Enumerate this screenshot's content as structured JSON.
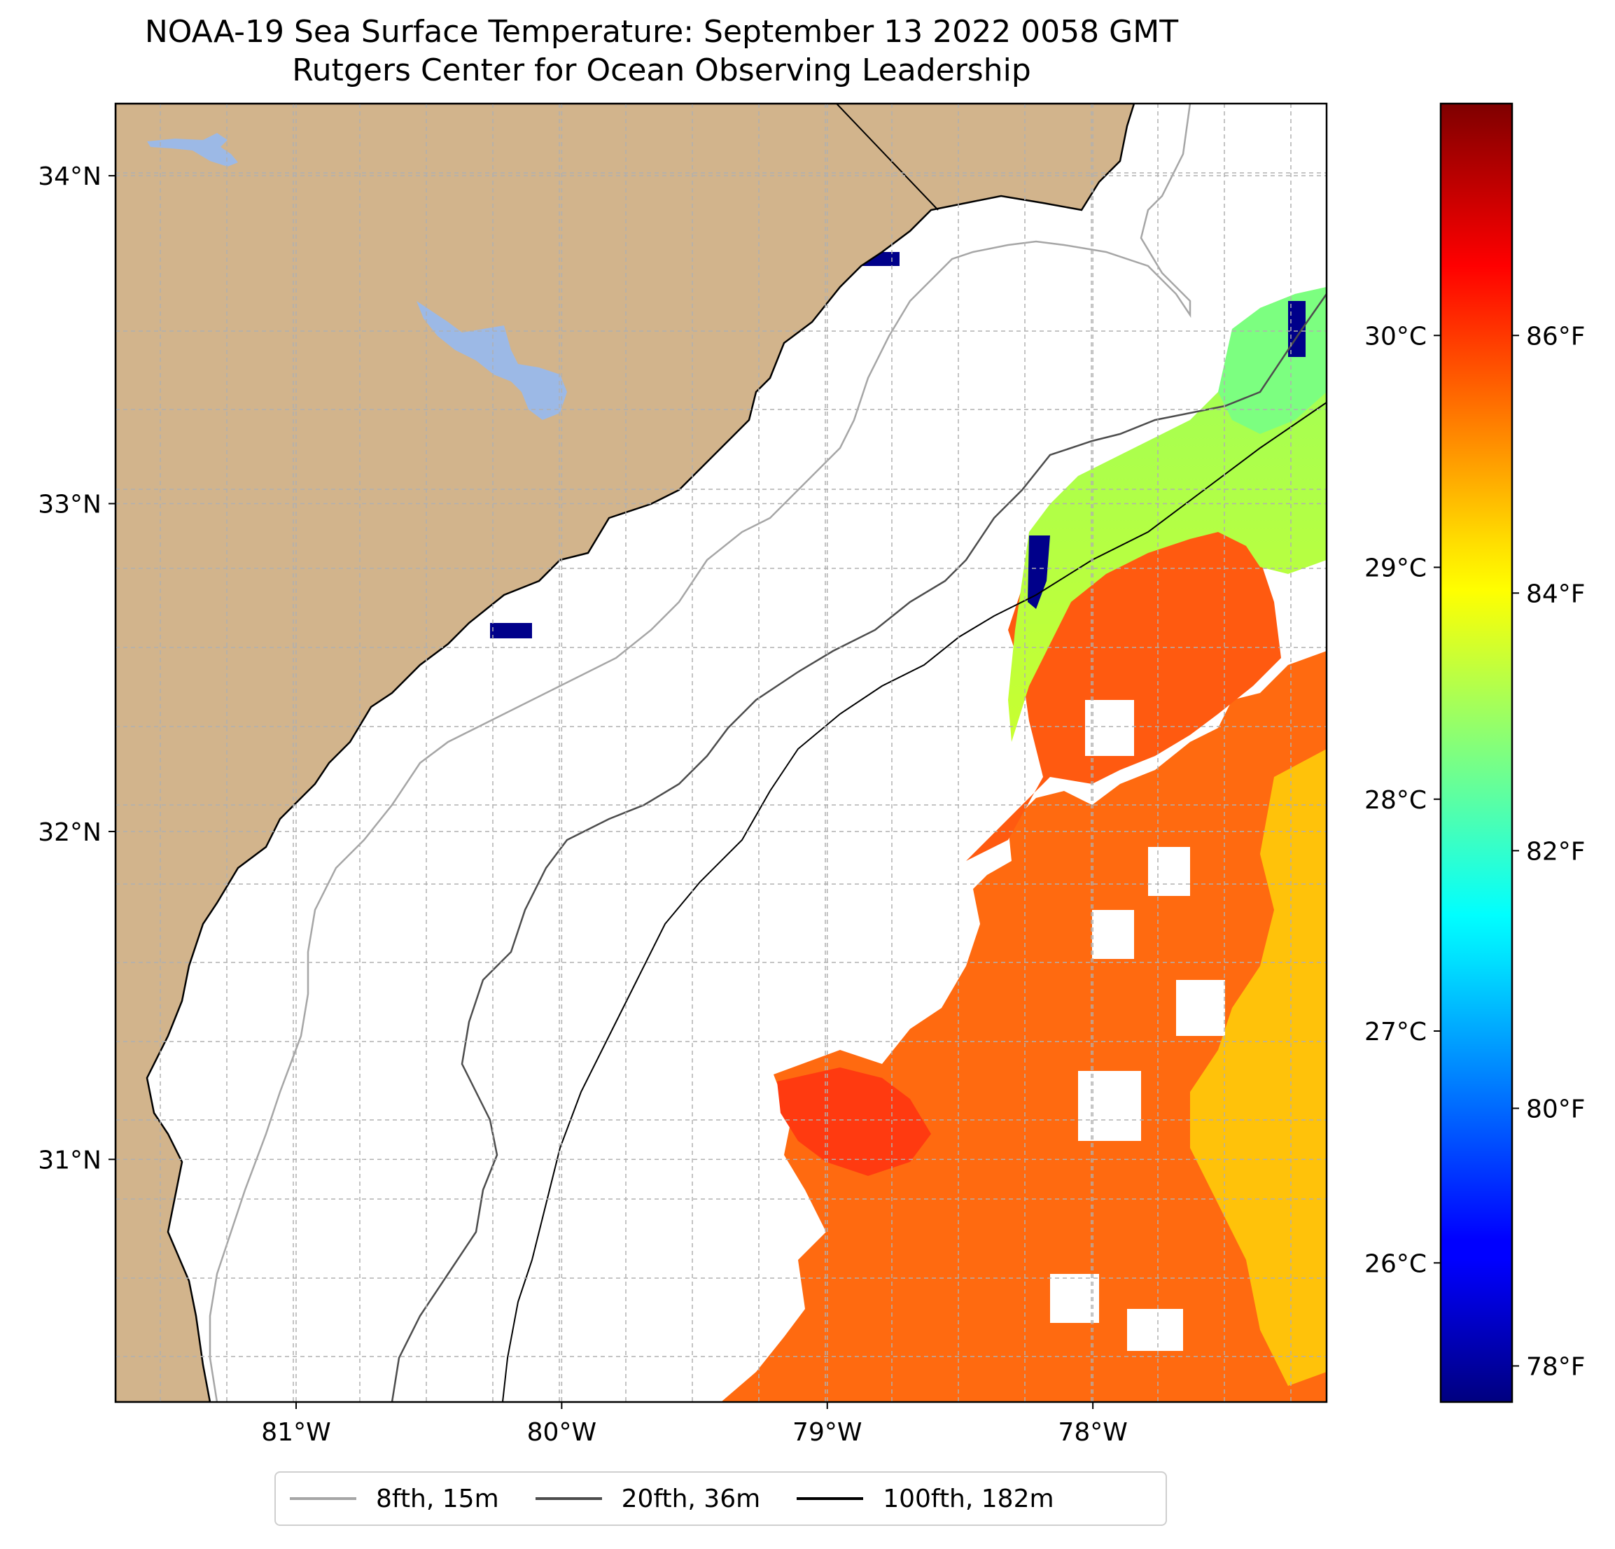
{
  "title": {
    "line1": "NOAA-19 Sea Surface Temperature: September 13 2022 0058 GMT",
    "line2": "Rutgers Center for Ocean Observing Leadership"
  },
  "map": {
    "extent": {
      "lon_min": -81.68,
      "lon_max": -77.12,
      "lat_min": 30.26,
      "lat_max": 34.22
    },
    "lat_ticks": [
      {
        "value": 34,
        "label": "34°N"
      },
      {
        "value": 33,
        "label": "33°N"
      },
      {
        "value": 32,
        "label": "32°N"
      },
      {
        "value": 31,
        "label": "31°N"
      }
    ],
    "lon_ticks": [
      {
        "value": -81,
        "label": "81°W"
      },
      {
        "value": -80,
        "label": "80°W"
      },
      {
        "value": -79,
        "label": "79°W"
      },
      {
        "value": -78,
        "label": "78°W"
      }
    ],
    "colors": {
      "land": "#d2b48c",
      "lakes": "#9cb9e6",
      "ocean": "#ffffff",
      "iso_8fth": "#a6a6a6",
      "iso_20fth": "#4d4d4d",
      "iso_100fth": "#000000",
      "grid": "#b0b0b0"
    }
  },
  "colorbar": {
    "colormap": "jet",
    "range_c": [
      25.4,
      31.0
    ],
    "celsius_ticks": [
      {
        "value": 30,
        "label": "30°C"
      },
      {
        "value": 29,
        "label": "29°C"
      },
      {
        "value": 28,
        "label": "28°C"
      },
      {
        "value": 27,
        "label": "27°C"
      },
      {
        "value": 26,
        "label": "26°C"
      }
    ],
    "fahrenheit_ticks": [
      {
        "value": 86,
        "label": "86°F"
      },
      {
        "value": 84,
        "label": "84°F"
      },
      {
        "value": 82,
        "label": "82°F"
      },
      {
        "value": 80,
        "label": "80°F"
      },
      {
        "value": 78,
        "label": "78°F"
      }
    ]
  },
  "legend": {
    "items": [
      {
        "label": "8fth, 15m",
        "color": "#a6a6a6"
      },
      {
        "label": "20fth, 36m",
        "color": "#4d4d4d"
      },
      {
        "label": "100fth, 182m",
        "color": "#000000"
      }
    ]
  }
}
